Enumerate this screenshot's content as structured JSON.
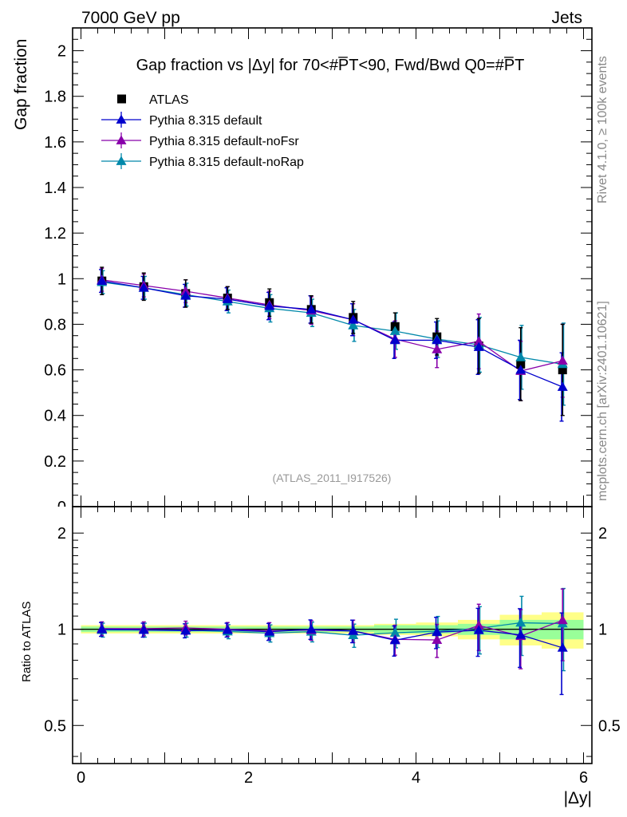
{
  "header": {
    "energy_label": "7000 GeV pp",
    "category_label": "Jets",
    "rivet_label": "Rivet 4.1.0, ≥ 100k events",
    "source_label": "mcplots.cern.ch [arXiv:2401.10621]",
    "analysis_label": "(ATLAS_2011_I917526)"
  },
  "colors": {
    "data": "#000000",
    "default": "#0000cc",
    "noFsr": "#8800aa",
    "noRap": "#0088aa",
    "band_inner": "#99ff99",
    "band_outer": "#ffff88"
  },
  "chart_data": [
    {
      "type": "line",
      "panel": "main",
      "title": "Gap fraction vs |Δy| for 70<#P̅T<90, Fwd/Bwd Q0=#P̅T",
      "ylabel": "Gap fraction",
      "xlabel": "|Δy|",
      "xlim": [
        -0.1,
        6.1
      ],
      "ylim": [
        0,
        2.1
      ],
      "yticks": [
        0.2,
        0.4,
        0.6,
        0.8,
        1,
        1.2,
        1.4,
        1.6,
        1.8,
        2
      ],
      "ytick_labels": [
        "0.2",
        "0.4",
        "0.6",
        "0.8",
        "1",
        "1.2",
        "1.4",
        "1.6",
        "1.8",
        "2"
      ],
      "y_zero_label": "0",
      "x": [
        0.25,
        0.75,
        1.25,
        1.75,
        2.25,
        2.75,
        3.25,
        3.75,
        4.25,
        4.75,
        5.25,
        5.75
      ],
      "series": [
        {
          "name": "ATLAS",
          "key": "data",
          "marker": "square",
          "values": [
            0.99,
            0.965,
            0.935,
            0.915,
            0.895,
            0.865,
            0.83,
            0.79,
            0.745,
            0.705,
            0.625,
            0.6
          ],
          "errors": [
            0.06,
            0.06,
            0.06,
            0.05,
            0.06,
            0.06,
            0.07,
            0.06,
            0.08,
            0.12,
            0.16,
            0.2
          ]
        },
        {
          "name": "Pythia 8.315 default",
          "key": "default",
          "marker": "triangle",
          "values": [
            0.99,
            0.96,
            0.925,
            0.91,
            0.88,
            0.865,
            0.82,
            0.73,
            0.73,
            0.7,
            0.6,
            0.525
          ],
          "errors": [
            0.05,
            0.05,
            0.05,
            0.05,
            0.06,
            0.06,
            0.07,
            0.08,
            0.08,
            0.12,
            0.13,
            0.15
          ]
        },
        {
          "name": "Pythia 8.315 default-noFsr",
          "key": "noFsr",
          "marker": "triangle",
          "values": [
            0.995,
            0.97,
            0.945,
            0.915,
            0.885,
            0.86,
            0.82,
            0.735,
            0.69,
            0.725,
            0.595,
            0.64
          ],
          "errors": [
            0.05,
            0.05,
            0.05,
            0.05,
            0.06,
            0.06,
            0.07,
            0.08,
            0.08,
            0.12,
            0.13,
            0.16
          ]
        },
        {
          "name": "Pythia 8.315 default-noRap",
          "key": "noRap",
          "marker": "triangle",
          "values": [
            0.985,
            0.96,
            0.93,
            0.9,
            0.87,
            0.85,
            0.795,
            0.77,
            0.735,
            0.71,
            0.655,
            0.625
          ],
          "errors": [
            0.05,
            0.05,
            0.05,
            0.05,
            0.06,
            0.06,
            0.07,
            0.08,
            0.08,
            0.12,
            0.14,
            0.18
          ]
        }
      ]
    },
    {
      "type": "line",
      "panel": "ratio",
      "ylabel": "Ratio to ATLAS",
      "xlabel": "|Δy|",
      "xlim": [
        -0.1,
        6.1
      ],
      "ylim": [
        0.38,
        2.42
      ],
      "yscale": "log",
      "yticks": [
        0.5,
        1,
        2
      ],
      "ytick_labels": [
        "0.5",
        "1",
        "2"
      ],
      "xticks": [
        0,
        2,
        4,
        6
      ],
      "xtick_labels": [
        "0",
        "2",
        "4",
        "6"
      ],
      "x": [
        0.25,
        0.75,
        1.25,
        1.75,
        2.25,
        2.75,
        3.25,
        3.75,
        4.25,
        4.75,
        5.25,
        5.75
      ],
      "band_inner": [
        0.02,
        0.02,
        0.02,
        0.02,
        0.02,
        0.02,
        0.02,
        0.03,
        0.03,
        0.04,
        0.07,
        0.07
      ],
      "band_outer": [
        0.03,
        0.03,
        0.03,
        0.03,
        0.03,
        0.03,
        0.03,
        0.04,
        0.05,
        0.07,
        0.11,
        0.13
      ],
      "series": [
        {
          "name": "Pythia 8.315 default",
          "key": "default",
          "values": [
            1.0,
            0.995,
            0.99,
            0.995,
            0.983,
            1.0,
            0.988,
            0.924,
            0.98,
            0.993,
            0.96,
            0.875
          ],
          "errors": [
            0.05,
            0.05,
            0.05,
            0.05,
            0.06,
            0.07,
            0.08,
            0.1,
            0.11,
            0.17,
            0.2,
            0.25
          ]
        },
        {
          "name": "Pythia 8.315 default-noFsr",
          "key": "noFsr",
          "values": [
            1.005,
            1.005,
            1.01,
            1.0,
            0.989,
            0.994,
            0.988,
            0.93,
            0.926,
            1.028,
            0.952,
            1.067
          ],
          "errors": [
            0.05,
            0.05,
            0.05,
            0.05,
            0.06,
            0.07,
            0.08,
            0.1,
            0.11,
            0.17,
            0.2,
            0.27
          ]
        },
        {
          "name": "Pythia 8.315 default-noRap",
          "key": "noRap",
          "values": [
            0.995,
            0.995,
            0.995,
            0.984,
            0.972,
            0.983,
            0.958,
            0.975,
            0.987,
            1.007,
            1.048,
            1.042
          ],
          "errors": [
            0.05,
            0.05,
            0.05,
            0.05,
            0.06,
            0.07,
            0.08,
            0.1,
            0.11,
            0.17,
            0.22,
            0.3
          ]
        }
      ]
    }
  ]
}
